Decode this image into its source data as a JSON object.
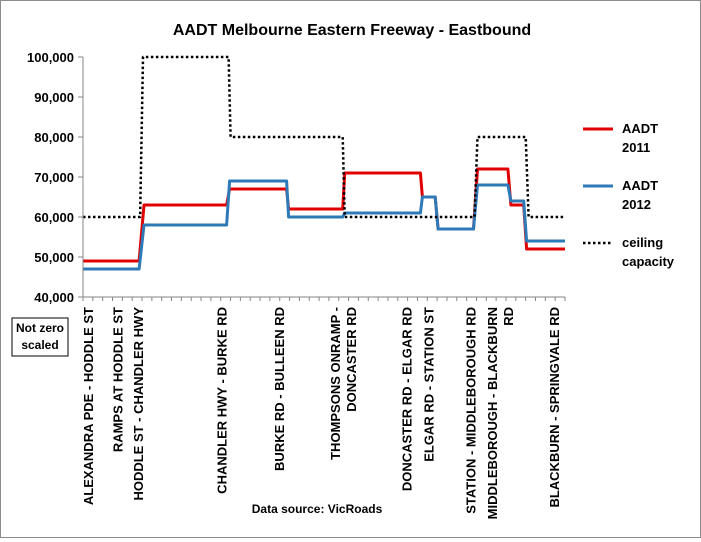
{
  "chart_data": {
    "type": "line",
    "title": "AADT Melbourne Eastern Freeway - Eastbound",
    "ylim": [
      40000,
      100000
    ],
    "yticks": [
      40000,
      50000,
      60000,
      70000,
      80000,
      90000,
      100000
    ],
    "ytick_labels": [
      "40,000",
      "50,000",
      "60,000",
      "70,000",
      "80,000",
      "90,000",
      "100,000"
    ],
    "note": "Not zero scaled",
    "source": "Data source: VicRoads",
    "grid": false,
    "legend_position": "right",
    "categories": [
      "ALEXANDRA PDE - HODDLE ST",
      "RAMPS AT HODDLE ST",
      "HODDLE ST - CHANDLER HWY",
      "CHANDLER HWY - BURKE RD",
      "BURKE RD - BULLEEN RD",
      "THOMPSONS ONRAMP - DONCASTER RD",
      "DONCASTER RD - ELGAR RD",
      "ELGAR RD - STATION ST",
      "STATION - MIDDLEBOROUGH RD",
      "MIDDLEBOROUGH - BLACKBURN RD",
      "BLACKBURN - SPRINGVALE RD"
    ],
    "series": [
      {
        "name": "AADT 2011",
        "color": "#e00000",
        "style": "solid",
        "points": [
          [
            0,
            49000
          ],
          [
            5.7,
            49000
          ],
          [
            6.2,
            63000
          ],
          [
            14.6,
            63000
          ],
          [
            14.9,
            67000
          ],
          [
            20.7,
            67000
          ],
          [
            20.9,
            62000
          ],
          [
            26.4,
            62000
          ],
          [
            26.6,
            71000
          ],
          [
            34.3,
            71000
          ],
          [
            34.5,
            65000
          ],
          [
            35.8,
            65000
          ],
          [
            36.1,
            57000
          ],
          [
            39.7,
            57000
          ],
          [
            40.1,
            72000
          ],
          [
            43.2,
            72000
          ],
          [
            43.5,
            63000
          ],
          [
            44.8,
            63000
          ],
          [
            45.1,
            52000
          ],
          [
            49,
            52000
          ]
        ]
      },
      {
        "name": "AADT 2012",
        "color": "#2e7ab8",
        "style": "solid",
        "points": [
          [
            0,
            47000
          ],
          [
            5.7,
            47000
          ],
          [
            6.2,
            58000
          ],
          [
            14.6,
            58000
          ],
          [
            14.9,
            69000
          ],
          [
            20.7,
            69000
          ],
          [
            20.9,
            60000
          ],
          [
            26.4,
            60000
          ],
          [
            26.6,
            61000
          ],
          [
            34.3,
            61000
          ],
          [
            34.5,
            65000
          ],
          [
            35.8,
            65000
          ],
          [
            36.1,
            57000
          ],
          [
            39.7,
            57000
          ],
          [
            40.1,
            68000
          ],
          [
            43.2,
            68000
          ],
          [
            43.5,
            64000
          ],
          [
            44.8,
            64000
          ],
          [
            45.1,
            54000
          ],
          [
            49,
            54000
          ]
        ]
      },
      {
        "name": "ceiling capacity",
        "color": "#000000",
        "style": "dotted",
        "points": [
          [
            0,
            60000
          ],
          [
            5.8,
            60000
          ],
          [
            6.1,
            100000
          ],
          [
            14.8,
            100000
          ],
          [
            15,
            80000
          ],
          [
            26.4,
            80000
          ],
          [
            26.6,
            60000
          ],
          [
            39.8,
            60000
          ],
          [
            40.1,
            80000
          ],
          [
            45,
            80000
          ],
          [
            45.3,
            60000
          ],
          [
            49,
            60000
          ]
        ]
      }
    ]
  }
}
